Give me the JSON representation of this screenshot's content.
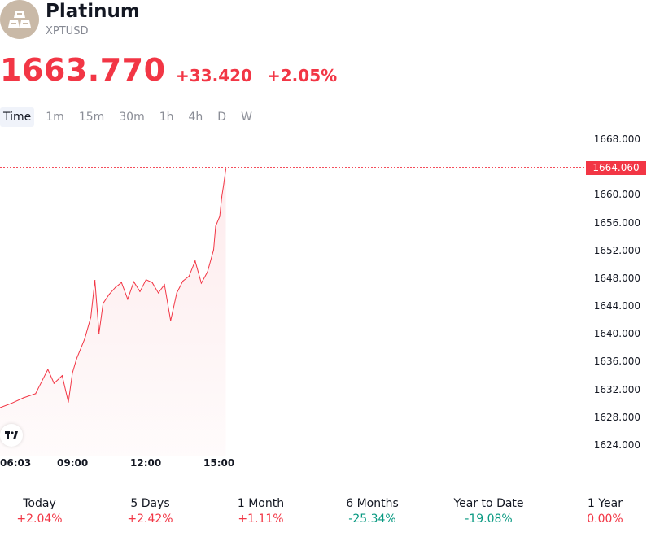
{
  "header": {
    "title": "Platinum",
    "ticker": "XPTUSD",
    "logo_icon": "gold-bars-icon"
  },
  "quote": {
    "price": "1663.770",
    "change": "+33.420",
    "change_pct": "+2.05%",
    "color": "#f23645"
  },
  "tabs": [
    "Time",
    "1m",
    "15m",
    "30m",
    "1h",
    "4h",
    "D",
    "W"
  ],
  "active_tab": "Time",
  "last_price_label": "1664.060",
  "chart_data": {
    "type": "area",
    "x_ticks": [
      "06:03",
      "09:00",
      "12:00",
      "15:00"
    ],
    "y_ticks": [
      "1668.000",
      "1664.000",
      "1660.000",
      "1656.000",
      "1652.000",
      "1648.000",
      "1644.000",
      "1640.000",
      "1636.000",
      "1632.000",
      "1628.000",
      "1624.000"
    ],
    "ylim": [
      1622.2,
      1669.9
    ],
    "last_price": 1664.06,
    "grid": false,
    "series": [
      {
        "x": [
          "06:03",
          "06:30",
          "07:00",
          "07:30",
          "08:00",
          "08:15",
          "08:35",
          "08:50",
          "09:00",
          "09:10",
          "09:30",
          "09:45",
          "09:55",
          "10:05",
          "10:15",
          "10:30",
          "10:45",
          "11:00",
          "11:15",
          "11:30",
          "11:45",
          "12:00",
          "12:15",
          "12:30",
          "12:45",
          "13:00",
          "13:15",
          "13:30",
          "13:45",
          "14:00",
          "14:15",
          "14:30",
          "14:45",
          "14:50",
          "15:00",
          "15:05",
          "15:10",
          "15:15"
        ],
        "y": [
          1629.5,
          1630.1,
          1630.9,
          1631.5,
          1635.0,
          1633.0,
          1634.1,
          1630.3,
          1634.5,
          1636.5,
          1639.4,
          1642.5,
          1647.8,
          1640.2,
          1644.5,
          1645.8,
          1646.8,
          1647.5,
          1645.1,
          1647.6,
          1646.2,
          1647.9,
          1647.5,
          1646.0,
          1647.2,
          1642.0,
          1646.0,
          1647.7,
          1648.4,
          1650.6,
          1647.4,
          1649.0,
          1652.2,
          1655.6,
          1657.0,
          1659.8,
          1661.7,
          1663.8
        ],
        "color": "#f23645"
      }
    ]
  },
  "performance": [
    {
      "label": "Today",
      "value": "+2.04%",
      "color": "#f23645"
    },
    {
      "label": "5 Days",
      "value": "+2.42%",
      "color": "#f23645"
    },
    {
      "label": "1 Month",
      "value": "+1.11%",
      "color": "#f23645"
    },
    {
      "label": "6 Months",
      "value": "-25.34%",
      "color": "#089981"
    },
    {
      "label": "Year to Date",
      "value": "-19.08%",
      "color": "#089981"
    },
    {
      "label": "1 Year",
      "value": "0.00%",
      "color": "#f23645"
    }
  ],
  "footer": {
    "tv_logo_icon": "tradingview-logo-icon"
  }
}
